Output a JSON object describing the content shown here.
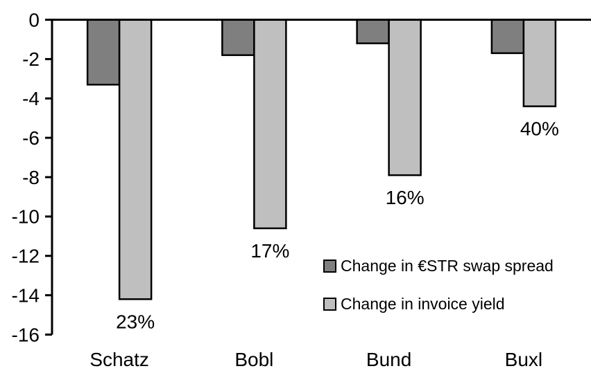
{
  "chart_data": {
    "type": "bar",
    "title": "",
    "xlabel": "",
    "ylabel": "",
    "categories": [
      "Schatz",
      "Bobl",
      "Bund",
      "Buxl"
    ],
    "series": [
      {
        "name": "Change in €STR swap spread",
        "color": "#7F7F7F",
        "values": [
          -3.3,
          -1.8,
          -1.2,
          -1.7
        ]
      },
      {
        "name": "Change in invoice yield",
        "color": "#BFBFBF",
        "values": [
          -14.2,
          -10.6,
          -7.9,
          -4.4
        ],
        "point_labels": [
          "23%",
          "17%",
          "16%",
          "40%"
        ]
      }
    ],
    "ylim": [
      -16,
      0
    ],
    "yticks": [
      0,
      -2,
      -4,
      -6,
      -8,
      -10,
      -12,
      -14,
      -16
    ],
    "grid": false,
    "legend_position": "inside-right-middle",
    "bar_outline_color": "#000000",
    "axis_color": "#000000",
    "background_color": "#FFFFFF"
  }
}
